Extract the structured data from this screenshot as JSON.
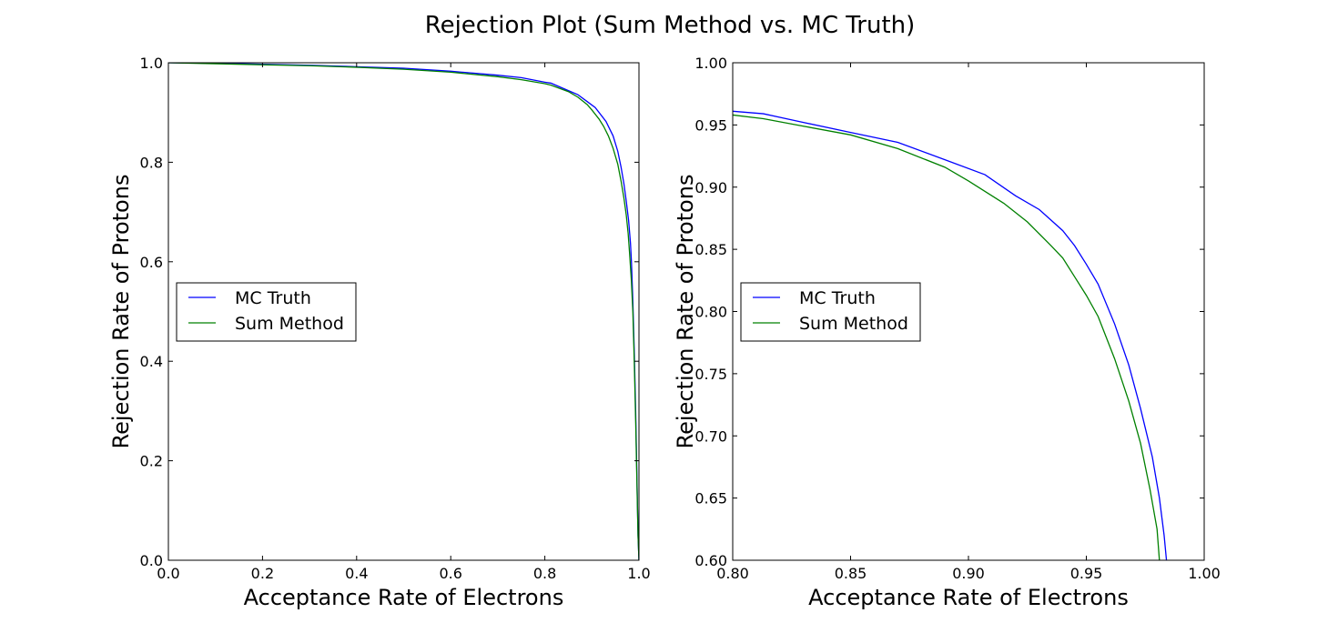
{
  "figure": {
    "title": "Rejection Plot (Sum Method vs. MC Truth)"
  },
  "chart_data": [
    {
      "type": "line",
      "xlabel": "Acceptance Rate of Electrons",
      "ylabel": "Rejection Rate of Protons",
      "xlim": [
        0.0,
        1.0
      ],
      "ylim": [
        0.0,
        1.0
      ],
      "xticks": [
        "0.0",
        "0.2",
        "0.4",
        "0.6",
        "0.8",
        "1.0"
      ],
      "yticks": [
        "0.0",
        "0.2",
        "0.4",
        "0.6",
        "0.8",
        "1.0"
      ],
      "grid": false,
      "legend_position": "center-left",
      "series": [
        {
          "name": "MC Truth",
          "color": "#0000ff",
          "x": [
            0.0,
            0.1,
            0.2,
            0.3,
            0.4,
            0.5,
            0.6,
            0.7,
            0.75,
            0.8,
            0.813,
            0.85,
            0.87,
            0.89,
            0.907,
            0.93,
            0.945,
            0.955,
            0.962,
            0.968,
            0.973,
            0.978,
            0.982,
            0.984,
            0.987,
            0.99,
            0.993,
            0.996,
            0.998,
            1.0
          ],
          "y": [
            1.0,
            0.999,
            0.997,
            0.995,
            0.992,
            0.989,
            0.983,
            0.975,
            0.97,
            0.961,
            0.959,
            0.944,
            0.936,
            0.922,
            0.91,
            0.882,
            0.853,
            0.822,
            0.79,
            0.757,
            0.722,
            0.683,
            0.637,
            0.6,
            0.52,
            0.42,
            0.3,
            0.15,
            0.05,
            0.0
          ]
        },
        {
          "name": "Sum Method",
          "color": "#008000",
          "x": [
            0.0,
            0.1,
            0.2,
            0.3,
            0.4,
            0.5,
            0.6,
            0.7,
            0.75,
            0.8,
            0.813,
            0.85,
            0.87,
            0.89,
            0.9,
            0.915,
            0.925,
            0.935,
            0.945,
            0.955,
            0.962,
            0.968,
            0.973,
            0.977,
            0.98,
            0.984,
            0.987,
            0.99,
            0.993,
            0.996,
            0.998,
            1.0
          ],
          "y": [
            1.0,
            0.998,
            0.996,
            0.994,
            0.991,
            0.987,
            0.981,
            0.972,
            0.966,
            0.958,
            0.955,
            0.942,
            0.931,
            0.916,
            0.905,
            0.887,
            0.872,
            0.853,
            0.828,
            0.796,
            0.762,
            0.728,
            0.694,
            0.657,
            0.618,
            0.56,
            0.5,
            0.4,
            0.28,
            0.14,
            0.05,
            0.0
          ]
        }
      ]
    },
    {
      "type": "line",
      "xlabel": "Acceptance Rate of Electrons",
      "ylabel": "Rejection Rate of Protons",
      "xlim": [
        0.8,
        1.0
      ],
      "ylim": [
        0.6,
        1.0
      ],
      "xticks": [
        "0.80",
        "0.85",
        "0.90",
        "0.95",
        "1.00"
      ],
      "yticks": [
        "0.60",
        "0.65",
        "0.70",
        "0.75",
        "0.80",
        "0.85",
        "0.90",
        "0.95",
        "1.00"
      ],
      "grid": false,
      "legend_position": "center-left",
      "series": [
        {
          "name": "MC Truth",
          "color": "#0000ff",
          "x": [
            0.8,
            0.813,
            0.83,
            0.85,
            0.87,
            0.89,
            0.907,
            0.92,
            0.93,
            0.94,
            0.945,
            0.95,
            0.955,
            0.962,
            0.968,
            0.973,
            0.978,
            0.981,
            0.983,
            0.984
          ],
          "y": [
            0.961,
            0.959,
            0.952,
            0.944,
            0.936,
            0.922,
            0.91,
            0.893,
            0.882,
            0.865,
            0.853,
            0.838,
            0.822,
            0.79,
            0.757,
            0.722,
            0.683,
            0.65,
            0.62,
            0.6
          ]
        },
        {
          "name": "Sum Method",
          "color": "#008000",
          "x": [
            0.8,
            0.813,
            0.83,
            0.85,
            0.87,
            0.89,
            0.9,
            0.915,
            0.925,
            0.935,
            0.94,
            0.945,
            0.95,
            0.955,
            0.962,
            0.968,
            0.973,
            0.977,
            0.98,
            0.981
          ],
          "y": [
            0.958,
            0.955,
            0.949,
            0.942,
            0.931,
            0.916,
            0.905,
            0.887,
            0.872,
            0.853,
            0.843,
            0.828,
            0.813,
            0.796,
            0.762,
            0.728,
            0.694,
            0.657,
            0.625,
            0.6
          ]
        }
      ]
    }
  ]
}
